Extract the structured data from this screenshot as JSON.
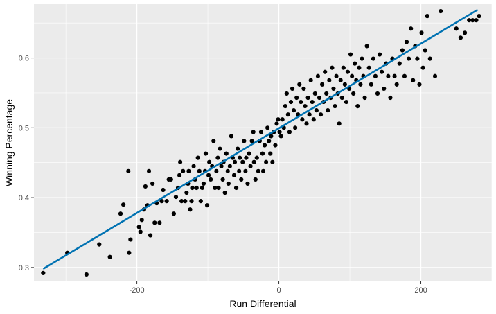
{
  "chart_data": {
    "type": "scatter",
    "title": "",
    "xlabel": "Run Differential",
    "ylabel": "Winning Percentage",
    "xlim": [
      -345,
      300
    ],
    "ylim": [
      0.28,
      0.677
    ],
    "x_ticks": [
      -200,
      0,
      200
    ],
    "x_tick_labels": [
      "-200",
      "0",
      "200"
    ],
    "y_ticks": [
      0.3,
      0.4,
      0.5,
      0.6
    ],
    "y_tick_labels": [
      "0.3",
      "0.4",
      "0.5",
      "0.6"
    ],
    "grid": true,
    "legend": "none",
    "colors": {
      "panel": "#EBEBEB",
      "grid": "#FFFFFF",
      "points": "#000000",
      "fit_line": "#0072B2"
    },
    "fit_line": {
      "x": [
        -332,
        280
      ],
      "y": [
        0.298,
        0.669
      ]
    },
    "points": [
      {
        "x": -332,
        "y": 0.292
      },
      {
        "x": -298,
        "y": 0.321
      },
      {
        "x": -271,
        "y": 0.29
      },
      {
        "x": -253,
        "y": 0.333
      },
      {
        "x": -238,
        "y": 0.315
      },
      {
        "x": -223,
        "y": 0.377
      },
      {
        "x": -219,
        "y": 0.39
      },
      {
        "x": -211,
        "y": 0.321
      },
      {
        "x": -209,
        "y": 0.34
      },
      {
        "x": -212,
        "y": 0.438
      },
      {
        "x": -197,
        "y": 0.358
      },
      {
        "x": -195,
        "y": 0.351
      },
      {
        "x": -193,
        "y": 0.368
      },
      {
        "x": -190,
        "y": 0.383
      },
      {
        "x": -188,
        "y": 0.416
      },
      {
        "x": -185,
        "y": 0.389
      },
      {
        "x": -183,
        "y": 0.438
      },
      {
        "x": -181,
        "y": 0.346
      },
      {
        "x": -178,
        "y": 0.42
      },
      {
        "x": -175,
        "y": 0.364
      },
      {
        "x": -172,
        "y": 0.392
      },
      {
        "x": -168,
        "y": 0.364
      },
      {
        "x": -165,
        "y": 0.395
      },
      {
        "x": -163,
        "y": 0.411
      },
      {
        "x": -158,
        "y": 0.395
      },
      {
        "x": -155,
        "y": 0.426
      },
      {
        "x": -152,
        "y": 0.426
      },
      {
        "x": -148,
        "y": 0.377
      },
      {
        "x": -145,
        "y": 0.401
      },
      {
        "x": -142,
        "y": 0.414
      },
      {
        "x": -140,
        "y": 0.432
      },
      {
        "x": -139,
        "y": 0.451
      },
      {
        "x": -137,
        "y": 0.395
      },
      {
        "x": -135,
        "y": 0.438
      },
      {
        "x": -132,
        "y": 0.395
      },
      {
        "x": -130,
        "y": 0.407
      },
      {
        "x": -128,
        "y": 0.42
      },
      {
        "x": -127,
        "y": 0.438
      },
      {
        "x": -125,
        "y": 0.383
      },
      {
        "x": -123,
        "y": 0.395
      },
      {
        "x": -122,
        "y": 0.414
      },
      {
        "x": -120,
        "y": 0.445
      },
      {
        "x": -118,
        "y": 0.426
      },
      {
        "x": -116,
        "y": 0.414
      },
      {
        "x": -114,
        "y": 0.457
      },
      {
        "x": -112,
        "y": 0.438
      },
      {
        "x": -110,
        "y": 0.395
      },
      {
        "x": -108,
        "y": 0.414
      },
      {
        "x": -106,
        "y": 0.42
      },
      {
        "x": -104,
        "y": 0.438
      },
      {
        "x": -103,
        "y": 0.463
      },
      {
        "x": -101,
        "y": 0.389
      },
      {
        "x": -99,
        "y": 0.432
      },
      {
        "x": -98,
        "y": 0.451
      },
      {
        "x": -96,
        "y": 0.426
      },
      {
        "x": -94,
        "y": 0.445
      },
      {
        "x": -92,
        "y": 0.481
      },
      {
        "x": -90,
        "y": 0.414
      },
      {
        "x": -88,
        "y": 0.438
      },
      {
        "x": -86,
        "y": 0.457
      },
      {
        "x": -85,
        "y": 0.414
      },
      {
        "x": -83,
        "y": 0.47
      },
      {
        "x": -81,
        "y": 0.445
      },
      {
        "x": -79,
        "y": 0.426
      },
      {
        "x": -78,
        "y": 0.451
      },
      {
        "x": -76,
        "y": 0.407
      },
      {
        "x": -74,
        "y": 0.463
      },
      {
        "x": -72,
        "y": 0.438
      },
      {
        "x": -71,
        "y": 0.42
      },
      {
        "x": -69,
        "y": 0.445
      },
      {
        "x": -67,
        "y": 0.488
      },
      {
        "x": -65,
        "y": 0.457
      },
      {
        "x": -63,
        "y": 0.432
      },
      {
        "x": -62,
        "y": 0.451
      },
      {
        "x": -60,
        "y": 0.414
      },
      {
        "x": -58,
        "y": 0.47
      },
      {
        "x": -56,
        "y": 0.438
      },
      {
        "x": -55,
        "y": 0.457
      },
      {
        "x": -53,
        "y": 0.426
      },
      {
        "x": -51,
        "y": 0.451
      },
      {
        "x": -49,
        "y": 0.481
      },
      {
        "x": -47,
        "y": 0.438
      },
      {
        "x": -46,
        "y": 0.457
      },
      {
        "x": -44,
        "y": 0.42
      },
      {
        "x": -42,
        "y": 0.463
      },
      {
        "x": -40,
        "y": 0.445
      },
      {
        "x": -38,
        "y": 0.481
      },
      {
        "x": -36,
        "y": 0.494
      },
      {
        "x": -35,
        "y": 0.451
      },
      {
        "x": -33,
        "y": 0.426
      },
      {
        "x": -31,
        "y": 0.457
      },
      {
        "x": -29,
        "y": 0.438
      },
      {
        "x": -27,
        "y": 0.481
      },
      {
        "x": -25,
        "y": 0.494
      },
      {
        "x": -23,
        "y": 0.463
      },
      {
        "x": -22,
        "y": 0.438
      },
      {
        "x": -20,
        "y": 0.475
      },
      {
        "x": -18,
        "y": 0.451
      },
      {
        "x": -16,
        "y": 0.5
      },
      {
        "x": -14,
        "y": 0.481
      },
      {
        "x": -12,
        "y": 0.463
      },
      {
        "x": -11,
        "y": 0.488
      },
      {
        "x": -9,
        "y": 0.451
      },
      {
        "x": -7,
        "y": 0.494
      },
      {
        "x": -5,
        "y": 0.475
      },
      {
        "x": -3,
        "y": 0.506
      },
      {
        "x": -1,
        "y": 0.512
      },
      {
        "x": 1,
        "y": 0.494
      },
      {
        "x": 3,
        "y": 0.488
      },
      {
        "x": 5,
        "y": 0.512
      },
      {
        "x": 7,
        "y": 0.5
      },
      {
        "x": 9,
        "y": 0.531
      },
      {
        "x": 11,
        "y": 0.549
      },
      {
        "x": 13,
        "y": 0.519
      },
      {
        "x": 15,
        "y": 0.494
      },
      {
        "x": 17,
        "y": 0.537
      },
      {
        "x": 19,
        "y": 0.556
      },
      {
        "x": 21,
        "y": 0.525
      },
      {
        "x": 23,
        "y": 0.5
      },
      {
        "x": 25,
        "y": 0.543
      },
      {
        "x": 27,
        "y": 0.519
      },
      {
        "x": 29,
        "y": 0.562
      },
      {
        "x": 31,
        "y": 0.537
      },
      {
        "x": 33,
        "y": 0.512
      },
      {
        "x": 35,
        "y": 0.556
      },
      {
        "x": 37,
        "y": 0.531
      },
      {
        "x": 39,
        "y": 0.506
      },
      {
        "x": 41,
        "y": 0.543
      },
      {
        "x": 43,
        "y": 0.519
      },
      {
        "x": 45,
        "y": 0.568
      },
      {
        "x": 47,
        "y": 0.537
      },
      {
        "x": 49,
        "y": 0.512
      },
      {
        "x": 51,
        "y": 0.549
      },
      {
        "x": 53,
        "y": 0.525
      },
      {
        "x": 55,
        "y": 0.574
      },
      {
        "x": 57,
        "y": 0.543
      },
      {
        "x": 59,
        "y": 0.519
      },
      {
        "x": 61,
        "y": 0.562
      },
      {
        "x": 63,
        "y": 0.537
      },
      {
        "x": 65,
        "y": 0.58
      },
      {
        "x": 67,
        "y": 0.549
      },
      {
        "x": 69,
        "y": 0.525
      },
      {
        "x": 71,
        "y": 0.568
      },
      {
        "x": 73,
        "y": 0.543
      },
      {
        "x": 75,
        "y": 0.586
      },
      {
        "x": 77,
        "y": 0.556
      },
      {
        "x": 79,
        "y": 0.531
      },
      {
        "x": 81,
        "y": 0.574
      },
      {
        "x": 83,
        "y": 0.549
      },
      {
        "x": 85,
        "y": 0.506
      },
      {
        "x": 87,
        "y": 0.568
      },
      {
        "x": 89,
        "y": 0.543
      },
      {
        "x": 91,
        "y": 0.586
      },
      {
        "x": 93,
        "y": 0.562
      },
      {
        "x": 95,
        "y": 0.537
      },
      {
        "x": 97,
        "y": 0.58
      },
      {
        "x": 99,
        "y": 0.556
      },
      {
        "x": 101,
        "y": 0.605
      },
      {
        "x": 103,
        "y": 0.574
      },
      {
        "x": 105,
        "y": 0.549
      },
      {
        "x": 107,
        "y": 0.592
      },
      {
        "x": 109,
        "y": 0.568
      },
      {
        "x": 111,
        "y": 0.531
      },
      {
        "x": 113,
        "y": 0.586
      },
      {
        "x": 115,
        "y": 0.562
      },
      {
        "x": 117,
        "y": 0.599
      },
      {
        "x": 119,
        "y": 0.574
      },
      {
        "x": 121,
        "y": 0.543
      },
      {
        "x": 124,
        "y": 0.617
      },
      {
        "x": 127,
        "y": 0.586
      },
      {
        "x": 130,
        "y": 0.562
      },
      {
        "x": 133,
        "y": 0.599
      },
      {
        "x": 136,
        "y": 0.574
      },
      {
        "x": 139,
        "y": 0.549
      },
      {
        "x": 142,
        "y": 0.605
      },
      {
        "x": 145,
        "y": 0.58
      },
      {
        "x": 148,
        "y": 0.556
      },
      {
        "x": 151,
        "y": 0.592
      },
      {
        "x": 154,
        "y": 0.574
      },
      {
        "x": 157,
        "y": 0.543
      },
      {
        "x": 160,
        "y": 0.599
      },
      {
        "x": 163,
        "y": 0.574
      },
      {
        "x": 166,
        "y": 0.562
      },
      {
        "x": 170,
        "y": 0.592
      },
      {
        "x": 174,
        "y": 0.611
      },
      {
        "x": 177,
        "y": 0.574
      },
      {
        "x": 180,
        "y": 0.623
      },
      {
        "x": 183,
        "y": 0.599
      },
      {
        "x": 186,
        "y": 0.642
      },
      {
        "x": 189,
        "y": 0.568
      },
      {
        "x": 192,
        "y": 0.617
      },
      {
        "x": 195,
        "y": 0.599
      },
      {
        "x": 198,
        "y": 0.562
      },
      {
        "x": 201,
        "y": 0.636
      },
      {
        "x": 203,
        "y": 0.586
      },
      {
        "x": 206,
        "y": 0.611
      },
      {
        "x": 209,
        "y": 0.66
      },
      {
        "x": 213,
        "y": 0.599
      },
      {
        "x": 220,
        "y": 0.574
      },
      {
        "x": 228,
        "y": 0.667
      },
      {
        "x": 250,
        "y": 0.642
      },
      {
        "x": 256,
        "y": 0.629
      },
      {
        "x": 262,
        "y": 0.636
      },
      {
        "x": 268,
        "y": 0.654
      },
      {
        "x": 273,
        "y": 0.654
      },
      {
        "x": 278,
        "y": 0.654
      },
      {
        "x": 282,
        "y": 0.66
      }
    ]
  }
}
